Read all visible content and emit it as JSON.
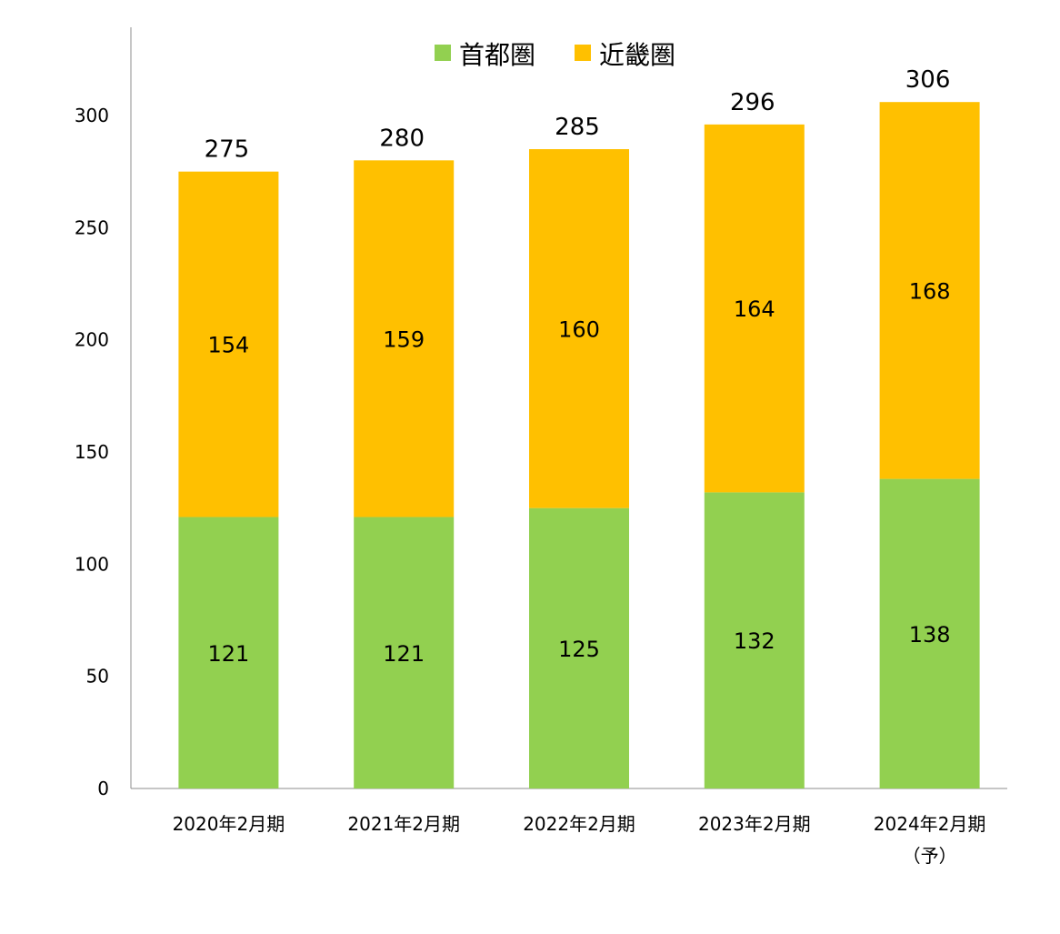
{
  "chart_data": {
    "type": "bar",
    "stacked": true,
    "categories": [
      [
        "2020年2月期"
      ],
      [
        "2021年2月期"
      ],
      [
        "2022年2月期"
      ],
      [
        "2023年2月期"
      ],
      [
        "2024年2月期",
        "（予）"
      ]
    ],
    "series": [
      {
        "name": "首都圏",
        "color": "#92D050",
        "values": [
          121,
          121,
          125,
          132,
          138
        ]
      },
      {
        "name": "近畿圏",
        "color": "#FFC000",
        "values": [
          154,
          159,
          160,
          164,
          168
        ]
      }
    ],
    "totals": [
      275,
      280,
      285,
      296,
      306
    ],
    "ylim": [
      0,
      340
    ],
    "yticks": [
      0,
      50,
      100,
      150,
      200,
      250,
      300
    ],
    "grid": false,
    "legend": "top-center"
  }
}
